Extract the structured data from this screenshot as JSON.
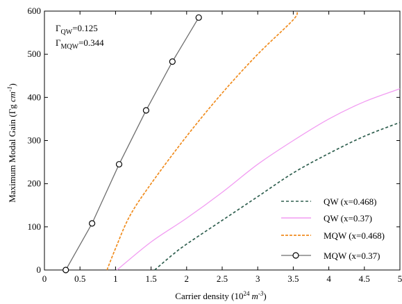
{
  "chart_data": {
    "type": "line",
    "title": "",
    "xlabel_main": "Carrier density (10",
    "xlabel_exp": "24",
    "xlabel_unit": "m",
    "xlabel_unit_exp": "-3",
    "xlabel_close": ")",
    "ylabel_main": "Maximum Modal Gain (Γg ",
    "ylabel_unit": "cm",
    "ylabel_unit_exp": "-1",
    "ylabel_close": ")",
    "xlim": [
      0,
      5
    ],
    "ylim": [
      0,
      600
    ],
    "xticks": [
      "0",
      "0.5",
      "1",
      "1.5",
      "2",
      "2.5",
      "3",
      "3.5",
      "4",
      "4.5",
      "5"
    ],
    "yticks": [
      "0",
      "100",
      "200",
      "300",
      "400",
      "500",
      "600"
    ],
    "annotations": [
      {
        "symbol": "Γ",
        "sub": "QW",
        "value": "=0.125"
      },
      {
        "symbol": "Γ",
        "sub": "MQW",
        "value": "=0.344"
      }
    ],
    "legend_position": "bottom-right",
    "series": [
      {
        "name": "QW (x=0.468)",
        "color": "#2e5e4e",
        "style": "dashed",
        "marker": "none",
        "x": [
          1.55,
          1.8,
          2.0,
          2.5,
          3.0,
          3.5,
          4.0,
          4.5,
          5.0
        ],
        "y": [
          0,
          35,
          60,
          115,
          170,
          225,
          270,
          310,
          342
        ]
      },
      {
        "name": "QW  (x=0.37)",
        "color": "#f29cf2",
        "style": "solid",
        "marker": "none",
        "x": [
          1.02,
          1.5,
          2.0,
          2.5,
          3.0,
          3.5,
          4.0,
          4.5,
          5.0
        ],
        "y": [
          0,
          65,
          120,
          180,
          245,
          300,
          350,
          390,
          420
        ]
      },
      {
        "name": "MQW (x=0.468)",
        "color": "#f08c1e",
        "style": "dashed",
        "marker": "none",
        "x": [
          0.88,
          1.0,
          1.2,
          1.5,
          2.0,
          2.5,
          3.0,
          3.5,
          3.55
        ],
        "y": [
          0,
          50,
          125,
          200,
          310,
          410,
          500,
          580,
          600
        ]
      },
      {
        "name": "MQW (x=0.37)",
        "color": "#6e6e6e",
        "style": "solid",
        "marker": "circle",
        "x": [
          0.3,
          0.67,
          1.05,
          1.43,
          1.8,
          2.17
        ],
        "y": [
          0,
          108,
          245,
          370,
          483,
          585
        ]
      }
    ]
  }
}
